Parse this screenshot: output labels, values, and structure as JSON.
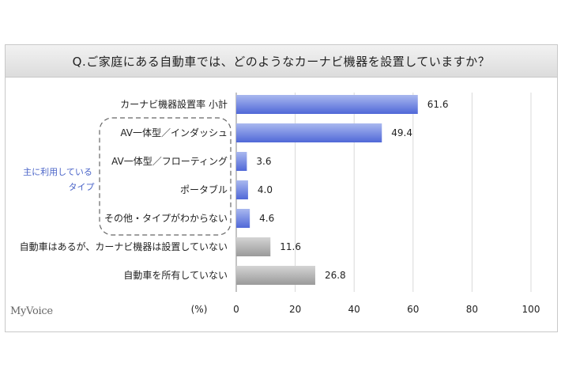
{
  "title": "Q.ご家庭にある自動車では、どのようなカーナビ機器を設置していますか？",
  "logo": "MyVoice",
  "unit_label": "(%)",
  "group_label": [
    "主に利用している",
    "タイプ"
  ],
  "colors": {
    "blue_light": "#a9b8ef",
    "blue_dark": "#5068d8",
    "gray_light": "#d4d4d4",
    "gray_dark": "#9a9a9a"
  },
  "chart_data": {
    "type": "bar",
    "orientation": "horizontal",
    "categories": [
      "カーナビ機器設置率 小計",
      "AV一体型／インダッシュ",
      "AV一体型／フローティング",
      "ポータブル",
      "その他・タイプがわからない",
      "自動車はあるが、カーナビ機器は設置していない",
      "自動車を所有していない"
    ],
    "values": [
      61.6,
      49.4,
      3.6,
      4.0,
      4.6,
      11.6,
      26.8
    ],
    "value_labels": [
      "61.6",
      "49.4",
      "3.6",
      "4.0",
      "4.6",
      "11.6",
      "26.8"
    ],
    "bar_colors": [
      "blue",
      "blue",
      "blue",
      "blue",
      "blue",
      "gray",
      "gray"
    ],
    "xlim": [
      0,
      100
    ],
    "xticks": [
      0,
      20,
      40,
      60,
      80,
      100
    ],
    "grid": true
  }
}
